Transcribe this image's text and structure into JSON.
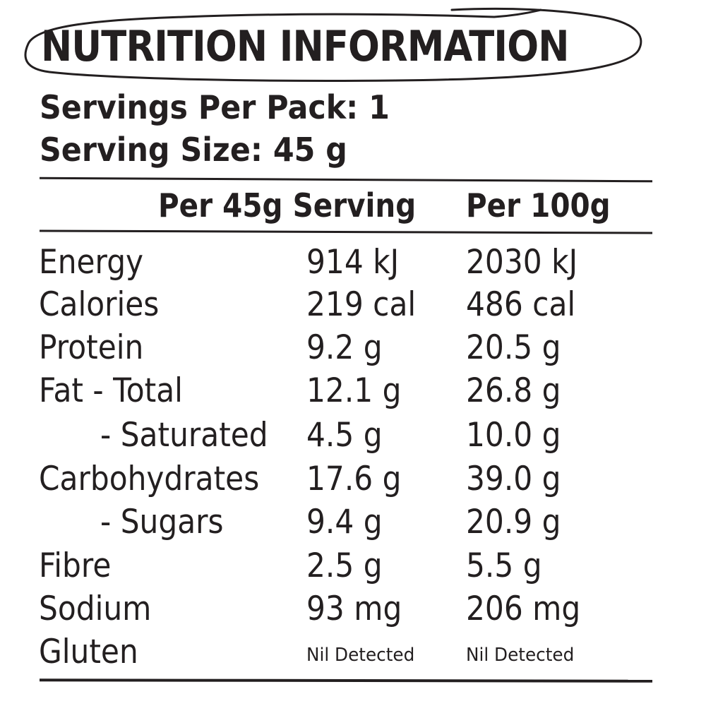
{
  "title": "NUTRITION INFORMATION",
  "servings_per_pack": "Servings Per Pack: 1",
  "serving_size": "Serving Size: 45 g",
  "columns": {
    "per_serving": "Per 45g Serving",
    "per_100g": "Per 100g"
  },
  "rows": [
    {
      "name": "Energy",
      "per_serving": "914 kJ",
      "per_100g": "2030 kJ"
    },
    {
      "name": "Calories",
      "per_serving": "219 cal",
      "per_100g": "486 cal"
    },
    {
      "name": "Protein",
      "per_serving": "9.2 g",
      "per_100g": "20.5 g"
    },
    {
      "name": "Fat - Total",
      "per_serving": "12.1 g",
      "per_100g": "26.8 g"
    },
    {
      "name": "- Saturated",
      "per_serving": "4.5 g",
      "per_100g": "10.0 g"
    },
    {
      "name": "Carbohydrates",
      "per_serving": "17.6 g",
      "per_100g": "39.0 g"
    },
    {
      "name": "- Sugars",
      "per_serving": "9.4 g",
      "per_100g": "20.9 g"
    },
    {
      "name": "Fibre",
      "per_serving": "2.5 g",
      "per_100g": "5.5 g"
    },
    {
      "name": "Sodium",
      "per_serving": "93 mg",
      "per_100g": "206 mg"
    },
    {
      "name": "Gluten",
      "per_serving": "Nil Detected",
      "per_100g": "Nil Detected"
    }
  ]
}
